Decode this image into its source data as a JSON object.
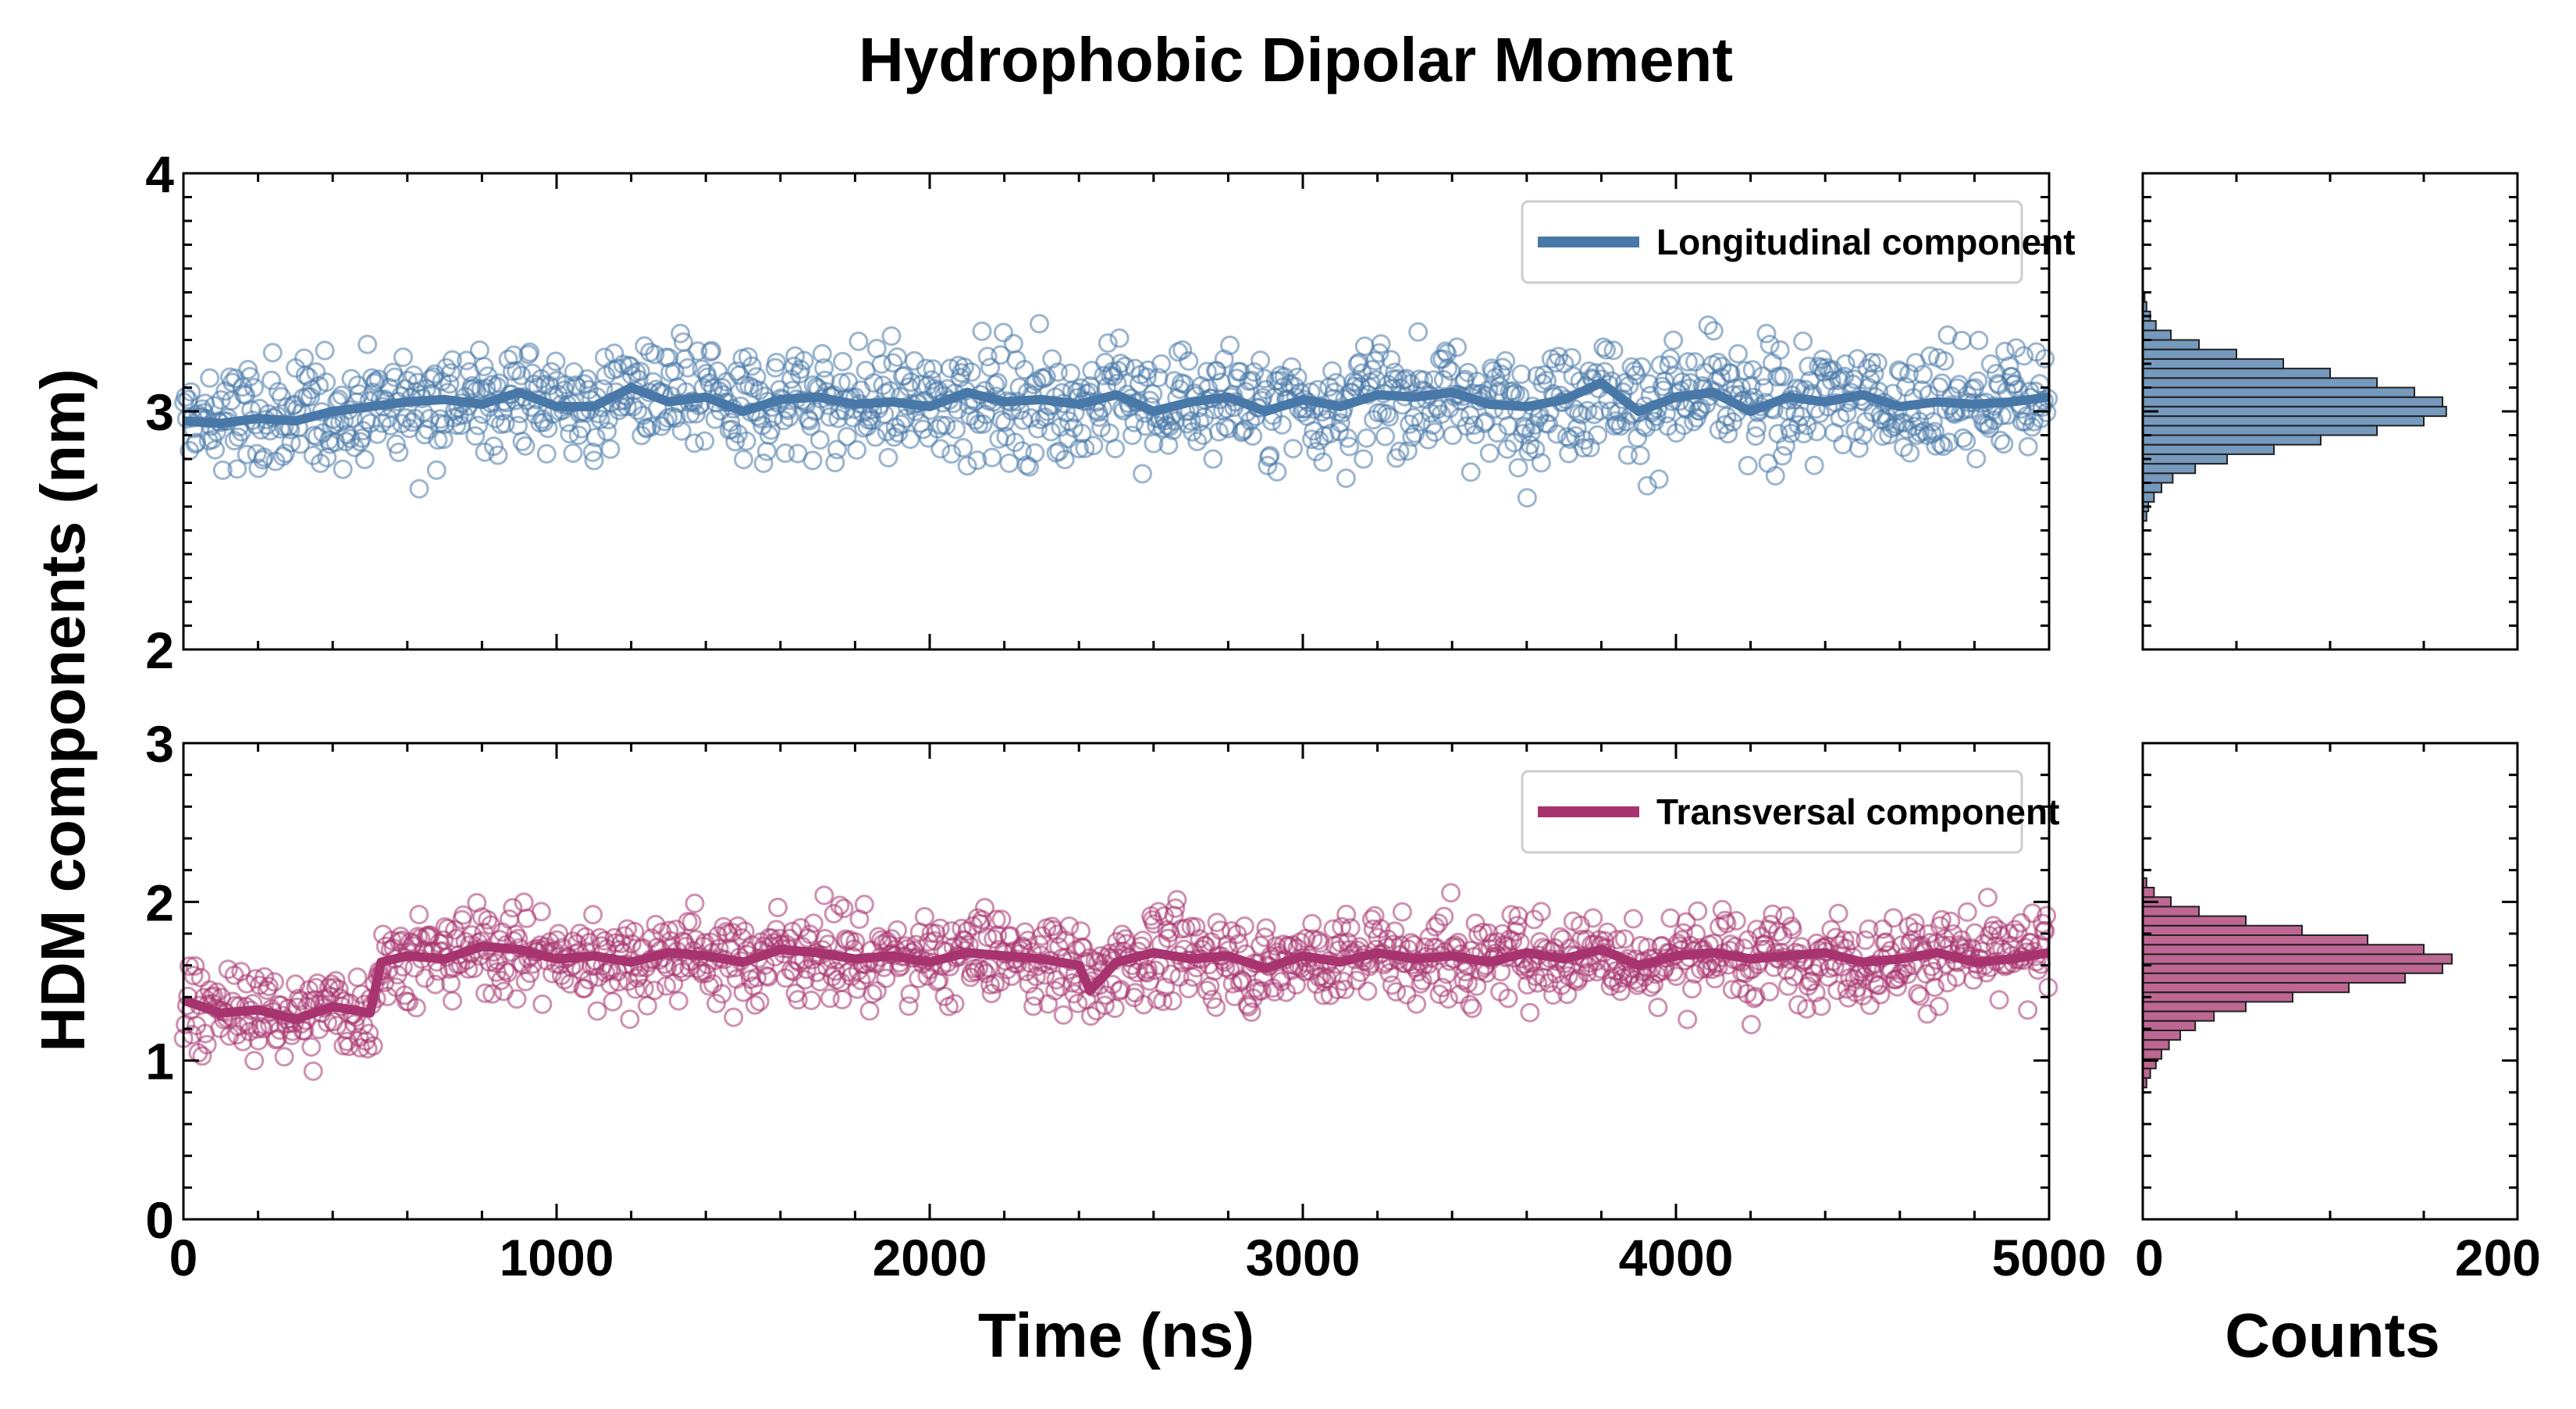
{
  "figure": {
    "title": "Hydrophobic Dipolar Moment",
    "ylabel": "HDM components (nm)",
    "xlabel": "Time (ns)",
    "hist_xlabel": "Counts"
  },
  "chart_data": [
    {
      "type": "scatter",
      "panel": "top-time-series",
      "series": [
        {
          "name": "Longitudinal component",
          "color": "#4878a8",
          "points": "≈2000 open-circle samples, mean ≈ 3.0, spread ≈ 2.6–3.45",
          "running_mean": {
            "x": [
              0,
              100,
              200,
              300,
              400,
              500,
              600,
              700,
              800,
              900,
              1000,
              1100,
              1200,
              1300,
              1400,
              1500,
              1600,
              1700,
              1800,
              1900,
              2000,
              2100,
              2200,
              2300,
              2400,
              2500,
              2600,
              2700,
              2800,
              2900,
              3000,
              3100,
              3200,
              3300,
              3400,
              3500,
              3600,
              3700,
              3800,
              3900,
              4000,
              4100,
              4200,
              4300,
              4400,
              4500,
              4600,
              4700,
              4800,
              4900,
              5000
            ],
            "y": [
              2.96,
              2.95,
              2.97,
              2.96,
              3.0,
              3.02,
              3.04,
              3.05,
              3.03,
              3.08,
              3.02,
              3.02,
              3.1,
              3.04,
              3.06,
              3.0,
              3.05,
              3.06,
              3.03,
              3.04,
              3.02,
              3.08,
              3.04,
              3.05,
              3.03,
              3.07,
              3.0,
              3.04,
              3.06,
              3.0,
              3.05,
              3.02,
              3.07,
              3.06,
              3.08,
              3.03,
              3.02,
              3.05,
              3.12,
              3.0,
              3.06,
              3.08,
              3.0,
              3.06,
              3.04,
              3.07,
              3.02,
              3.04,
              3.03,
              3.04,
              3.06
            ]
          }
        }
      ],
      "xlim": [
        0,
        5000
      ],
      "ylim": [
        2,
        4
      ],
      "yticks": [
        "2",
        "3",
        "4"
      ],
      "xticks": [
        "0",
        "1000",
        "2000",
        "3000",
        "4000",
        "5000"
      ],
      "legend": "top-right"
    },
    {
      "type": "scatter",
      "panel": "bottom-time-series",
      "series": [
        {
          "name": "Transversal component",
          "color": "#a8346f",
          "points": "≈2000 open-circle samples, mean ≈ 1.3 for t < 530 ns, ≈ 1.65 afterwards",
          "running_mean": {
            "x": [
              0,
              100,
              200,
              300,
              400,
              500,
              530,
              600,
              700,
              800,
              900,
              1000,
              1100,
              1200,
              1300,
              1400,
              1500,
              1600,
              1700,
              1800,
              1900,
              2000,
              2100,
              2200,
              2300,
              2400,
              2430,
              2500,
              2600,
              2700,
              2800,
              2900,
              3000,
              3100,
              3200,
              3300,
              3400,
              3500,
              3600,
              3700,
              3800,
              3900,
              4000,
              4100,
              4200,
              4300,
              4400,
              4500,
              4600,
              4700,
              4800,
              4900,
              5000
            ],
            "y": [
              1.38,
              1.3,
              1.32,
              1.26,
              1.34,
              1.3,
              1.62,
              1.66,
              1.64,
              1.72,
              1.7,
              1.64,
              1.66,
              1.62,
              1.68,
              1.66,
              1.62,
              1.7,
              1.68,
              1.64,
              1.66,
              1.62,
              1.68,
              1.66,
              1.64,
              1.6,
              1.44,
              1.62,
              1.68,
              1.64,
              1.66,
              1.58,
              1.66,
              1.62,
              1.68,
              1.64,
              1.66,
              1.62,
              1.68,
              1.64,
              1.7,
              1.6,
              1.66,
              1.68,
              1.64,
              1.66,
              1.68,
              1.62,
              1.64,
              1.68,
              1.62,
              1.64,
              1.68
            ]
          }
        }
      ],
      "xlim": [
        0,
        5000
      ],
      "ylim": [
        0,
        3
      ],
      "yticks": [
        "0",
        "1",
        "2",
        "3"
      ],
      "xticks": [
        "0",
        "1000",
        "2000",
        "3000",
        "4000",
        "5000"
      ],
      "legend": "top-right"
    },
    {
      "type": "bar",
      "panel": "top-histogram",
      "orientation": "horizontal",
      "bin_centers": [
        2.56,
        2.6,
        2.64,
        2.68,
        2.72,
        2.76,
        2.8,
        2.84,
        2.88,
        2.92,
        2.96,
        3.0,
        3.04,
        3.08,
        3.12,
        3.16,
        3.2,
        3.24,
        3.28,
        3.32,
        3.36,
        3.4,
        3.44,
        3.48
      ],
      "values": [
        2,
        3,
        6,
        10,
        16,
        28,
        45,
        70,
        95,
        125,
        150,
        162,
        160,
        145,
        125,
        100,
        75,
        50,
        30,
        15,
        7,
        4,
        2,
        1
      ],
      "color": "#4878a8",
      "xlim": [
        0,
        200
      ],
      "ylim": [
        2,
        4
      ],
      "xticks": [
        "0",
        "200"
      ]
    },
    {
      "type": "bar",
      "panel": "bottom-histogram",
      "orientation": "horizontal",
      "bin_centers": [
        0.86,
        0.92,
        0.98,
        1.04,
        1.1,
        1.16,
        1.22,
        1.28,
        1.34,
        1.4,
        1.46,
        1.52,
        1.58,
        1.64,
        1.7,
        1.76,
        1.82,
        1.88,
        1.94,
        2.0,
        2.06,
        2.12
      ],
      "values": [
        2,
        4,
        7,
        10,
        14,
        20,
        28,
        38,
        55,
        80,
        110,
        140,
        160,
        165,
        150,
        120,
        85,
        55,
        30,
        15,
        6,
        2
      ],
      "color": "#a8346f",
      "xlim": [
        0,
        200
      ],
      "ylim": [
        0,
        3
      ],
      "xticks": [
        "0",
        "200"
      ]
    }
  ]
}
